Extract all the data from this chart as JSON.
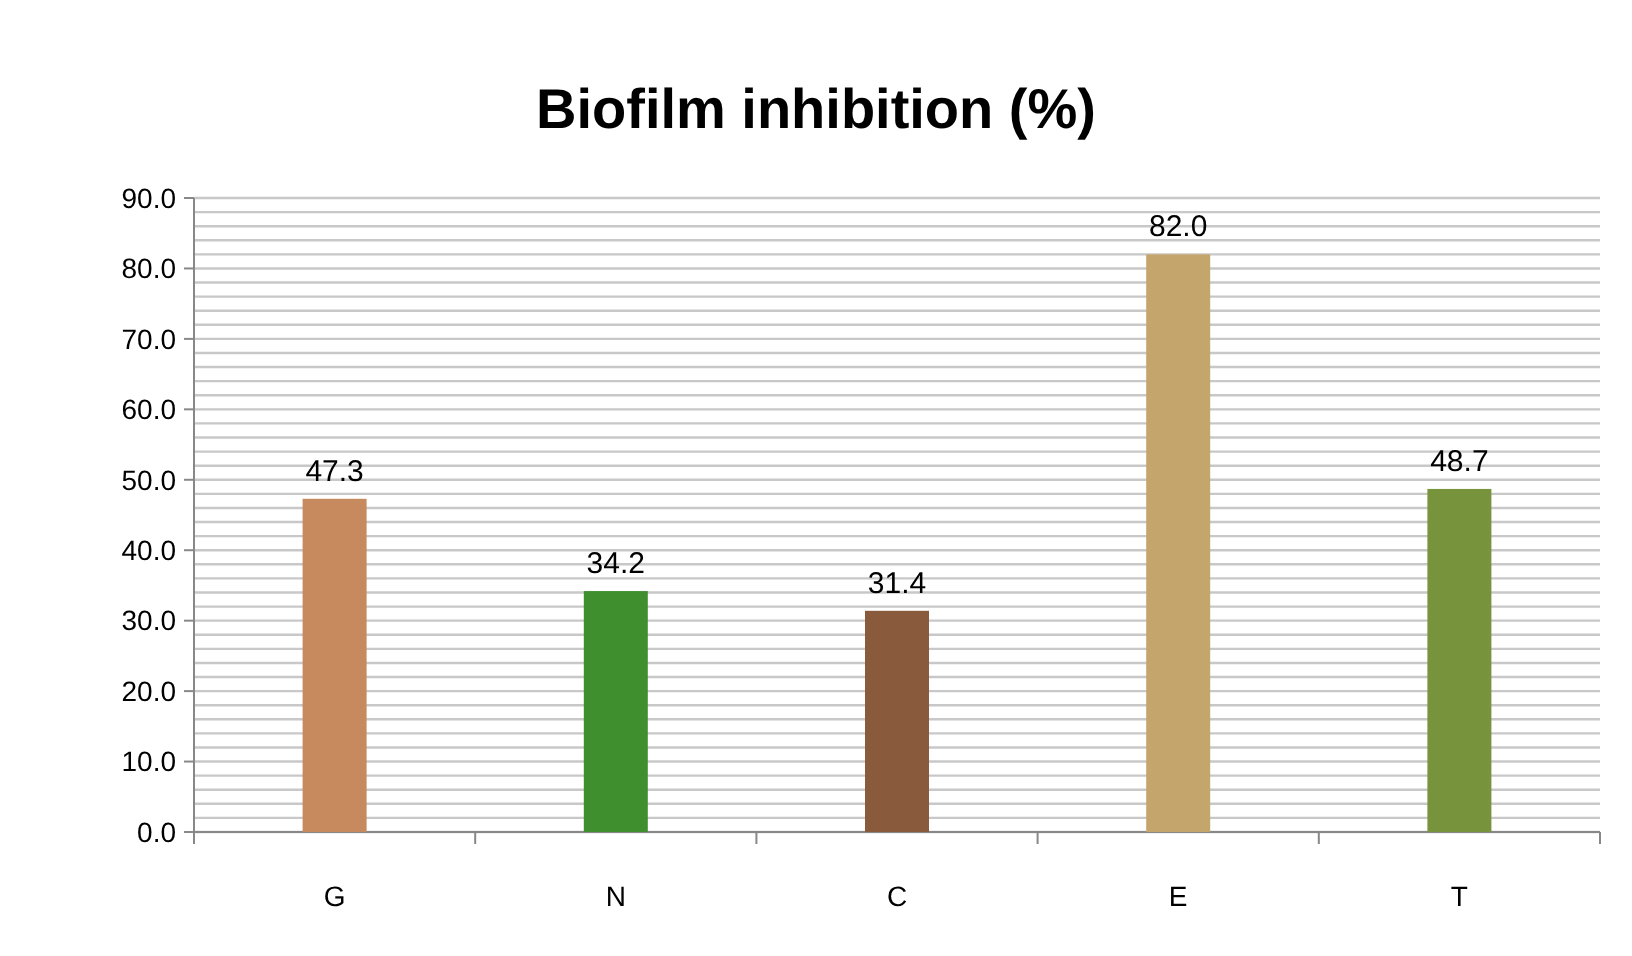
{
  "chart_data": {
    "type": "bar",
    "title": "Biofilm inhibition (%)",
    "categories": [
      "G",
      "N",
      "C",
      "E",
      "T"
    ],
    "values": [
      47.3,
      34.2,
      31.4,
      82.0,
      48.7
    ],
    "colors": [
      "#c68a5e",
      "#3f8f2f",
      "#8a5a3c",
      "#c4a66c",
      "#77933c"
    ],
    "value_labels": [
      "47.3",
      "34.2",
      "31.4",
      "82.0",
      "48.7"
    ],
    "ylim": [
      0,
      90
    ],
    "yticks": [
      {
        "value": 0,
        "label": "0.0"
      },
      {
        "value": 10,
        "label": "10.0"
      },
      {
        "value": 20,
        "label": "20.0"
      },
      {
        "value": 30,
        "label": "30.0"
      },
      {
        "value": 40,
        "label": "40.0"
      },
      {
        "value": 50,
        "label": "50.0"
      },
      {
        "value": 60,
        "label": "60.0"
      },
      {
        "value": 70,
        "label": "70.0"
      },
      {
        "value": 80,
        "label": "80.0"
      },
      {
        "value": 90,
        "label": "90.0"
      }
    ],
    "grid": true
  }
}
